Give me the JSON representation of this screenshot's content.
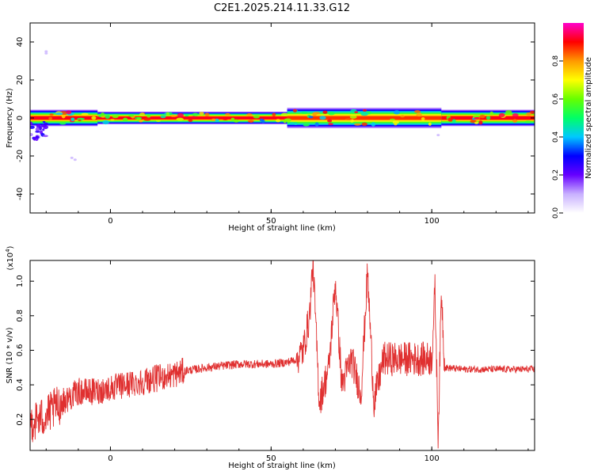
{
  "title": "C2E1.2025.214.11.33.G12",
  "chart_data": [
    {
      "type": "heatmap",
      "xlabel": "Height of straight line (km)",
      "ylabel": "Frequency (Hz)",
      "xlim": [
        -25,
        132
      ],
      "ylim": [
        -50,
        50
      ],
      "xticks": [
        0,
        50,
        100
      ],
      "yticks": [
        -40,
        -20,
        0,
        20,
        40
      ],
      "colorbar": {
        "label": "Normalized spectral amplitude",
        "range": [
          0,
          1
        ],
        "ticks": [
          "0.0",
          "0.2",
          "0.4",
          "0.6",
          "0.8"
        ],
        "colormap": [
          "#ffffff",
          "#c8b0ff",
          "#6600ff",
          "#0000ff",
          "#00c8ff",
          "#00ff66",
          "#66ff00",
          "#ffff00",
          "#ff9900",
          "#ff0000",
          "#ff00cc"
        ]
      },
      "band": {
        "center_hz": 0,
        "segments": [
          {
            "x": [
              -25,
              -4
            ],
            "half_width_hz": 4,
            "peak": 1.0
          },
          {
            "x": [
              -4,
              55
            ],
            "half_width_hz": 3,
            "peak": 1.0
          },
          {
            "x": [
              55,
              103
            ],
            "half_width_hz": 5,
            "peak": 0.95
          },
          {
            "x": [
              103,
              132
            ],
            "half_width_hz": 4,
            "peak": 1.0
          }
        ],
        "low_frequency_spread": {
          "x": [
            -25,
            -20
          ],
          "min_hz": -12
        }
      }
    },
    {
      "type": "line",
      "xlabel": "Height of straight line (km)",
      "ylabel": "SNR (10 * v/v)",
      "y_multiplier": "(x10^4)",
      "xlim": [
        -25,
        132
      ],
      "ylim": [
        0.02,
        1.12
      ],
      "xticks": [
        0,
        50,
        100
      ],
      "yticks": [
        "0.2",
        "0.4",
        "0.6",
        "0.8",
        "1.0"
      ],
      "color": "#e03030",
      "series": [
        {
          "x": [
            -25,
            -20,
            -15,
            -10,
            -5,
            0,
            5,
            10,
            15,
            20,
            23,
            30,
            40,
            50,
            55,
            58,
            60,
            62,
            63,
            65,
            68,
            70,
            72,
            75,
            78,
            80,
            82,
            85,
            90,
            95,
            100,
            101,
            102,
            103,
            104,
            110,
            120,
            132
          ],
          "y": [
            0.18,
            0.22,
            0.3,
            0.36,
            0.36,
            0.38,
            0.4,
            0.42,
            0.44,
            0.46,
            0.48,
            0.5,
            0.52,
            0.52,
            0.53,
            0.55,
            0.6,
            0.8,
            1.12,
            0.3,
            0.5,
            1.0,
            0.4,
            0.55,
            0.35,
            1.05,
            0.3,
            0.55,
            0.55,
            0.55,
            0.55,
            0.95,
            0.1,
            0.95,
            0.5,
            0.49,
            0.49,
            0.49
          ]
        }
      ]
    }
  ]
}
